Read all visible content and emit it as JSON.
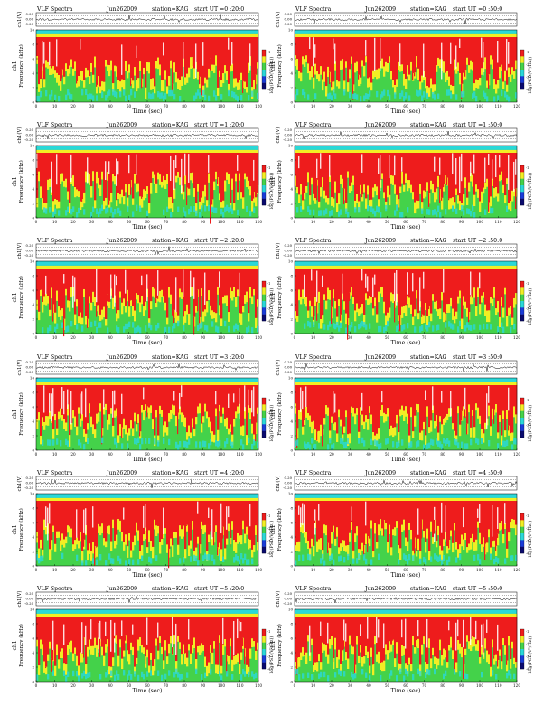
{
  "chart_data": [
    {
      "type": "heatmap",
      "row": 0,
      "col": 0,
      "header": {
        "left": "VLF Spectra",
        "date": "Jun262009",
        "station": "station=KAG",
        "start": "start  UT =0 :20:0"
      }
    },
    {
      "type": "heatmap",
      "row": 0,
      "col": 1,
      "header": {
        "left": "VLF Spectra",
        "date": "Jun262009",
        "station": "station=KAG",
        "start": "start  UT =0 :50:0"
      }
    },
    {
      "type": "heatmap",
      "row": 1,
      "col": 0,
      "header": {
        "left": "VLF Spectra",
        "date": "Jun262009",
        "station": "station=KAG",
        "start": "start  UT =1 :20:0"
      }
    },
    {
      "type": "heatmap",
      "row": 1,
      "col": 1,
      "header": {
        "left": "VLF Spectra",
        "date": "Jun262009",
        "station": "station=KAG",
        "start": "start  UT =1 :50:0"
      }
    },
    {
      "type": "heatmap",
      "row": 2,
      "col": 0,
      "header": {
        "left": "VLF Spectra",
        "date": "Jun262009",
        "station": "station=KAG",
        "start": "start  UT =2 :20:0"
      }
    },
    {
      "type": "heatmap",
      "row": 2,
      "col": 1,
      "header": {
        "left": "VLF Spectra",
        "date": "Jun262009",
        "station": "station=KAG",
        "start": "start  UT =2 :50:0"
      }
    },
    {
      "type": "heatmap",
      "row": 3,
      "col": 0,
      "header": {
        "left": "VLF Spectra",
        "date": "Jun262009",
        "station": "station=KAG",
        "start": "start  UT =3 :20:0"
      }
    },
    {
      "type": "heatmap",
      "row": 3,
      "col": 1,
      "header": {
        "left": "VLF Spectra",
        "date": "Jun262009",
        "station": "station=KAG",
        "start": "start  UT =3 :50:0"
      }
    },
    {
      "type": "heatmap",
      "row": 4,
      "col": 0,
      "header": {
        "left": "VLF Spectra",
        "date": "Jun262009",
        "station": "station=KAG",
        "start": "start  UT =4 :20:0"
      }
    },
    {
      "type": "heatmap",
      "row": 4,
      "col": 1,
      "header": {
        "left": "VLF Spectra",
        "date": "Jun262009",
        "station": "station=KAG",
        "start": "start  UT =4 :50:0"
      }
    },
    {
      "type": "heatmap",
      "row": 5,
      "col": 0,
      "header": {
        "left": "VLF Spectra",
        "date": "Jun262009",
        "station": "station=KAG",
        "start": "start  UT =5 :20:0"
      }
    },
    {
      "type": "heatmap",
      "row": 5,
      "col": 1,
      "header": {
        "left": "VLF Spectra",
        "date": "Jun262009",
        "station": "station=KAG",
        "start": "start  UT =5 :50:0"
      }
    }
  ],
  "common": {
    "wave_label": "ch1(V)",
    "wave_ticks": [
      "0.20",
      "0.00",
      "-0.20"
    ],
    "freq_label_top": "ch1",
    "freq_label": "Frequency (kHz)",
    "freq_ticks": [
      "0",
      "2",
      "4",
      "6",
      "8",
      "10"
    ],
    "freq_range_khz": [
      0,
      10
    ],
    "time_label": "Time (sec)",
    "time_ticks": [
      "0",
      "10",
      "20",
      "30",
      "40",
      "50",
      "60",
      "70",
      "80",
      "90",
      "100",
      "110",
      "120"
    ],
    "time_range_sec": [
      0,
      120
    ],
    "colorbar_label": "log(PSD(V²/Hz))",
    "colorbar_ticks": [
      "-1",
      "-2",
      "-3",
      "-4"
    ],
    "colors": {
      "red": "#ee1c1c",
      "yellow": "#f2ee24",
      "green": "#44d24a",
      "cyan": "#2ad8d8",
      "blue": "#1a3cd8",
      "navy": "#0a0a6e",
      "white": "#ffffff"
    }
  }
}
